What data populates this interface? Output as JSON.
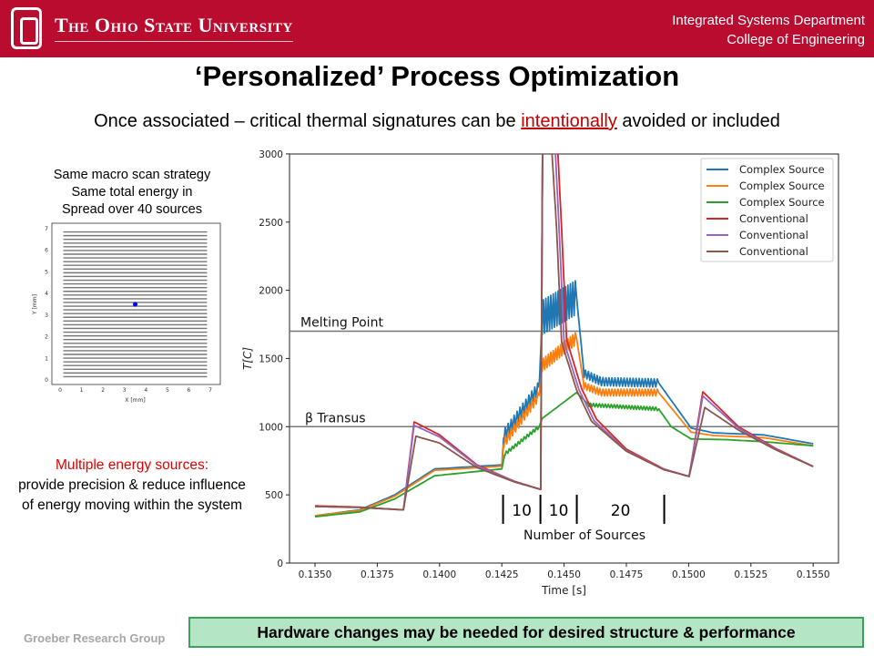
{
  "header": {
    "university": "The Ohio State University",
    "department": "Integrated Systems Department",
    "college": "College of Engineering"
  },
  "title": "‘Personalized’ Process Optimization",
  "subtitle": {
    "before": "Once associated – critical thermal signatures can be ",
    "emphasis": "intentionally",
    "after": " avoided or included"
  },
  "left_notes": {
    "line1": "Same macro scan strategy",
    "line2": "Same total energy in",
    "line3": "Spread over 40 sources",
    "red": "Multiple energy sources:",
    "body": "provide precision & reduce influence of energy moving within the system"
  },
  "inset": {
    "xlabel": "X [mm]",
    "ylabel": "Y [mm]",
    "ticks": [
      "0",
      "1",
      "2",
      "3",
      "4",
      "5",
      "6",
      "7"
    ],
    "point": [
      3.5,
      3.5
    ],
    "point_color": "#0000ff",
    "scan_lines": 40
  },
  "footer": {
    "group": "Groeber Research Group",
    "banner": "Hardware changes may be needed for desired structure & performance"
  },
  "chart_data": {
    "type": "line",
    "xlabel": "Time [s]",
    "ylabel": "T[C]",
    "xlim": [
      0.1341,
      0.1556
    ],
    "ylim": [
      0,
      3000
    ],
    "xticks": [
      "0.1350",
      "0.1375",
      "0.1400",
      "0.1425",
      "0.1450",
      "0.1475",
      "0.1500",
      "0.1525",
      "0.1550"
    ],
    "yticks": [
      "0",
      "500",
      "1000",
      "1500",
      "2000",
      "2500",
      "3000"
    ],
    "legend_position": "top-right",
    "reference_lines": [
      {
        "label": "Melting Point",
        "value": 1700
      },
      {
        "label": "β Transus",
        "value": 1000
      }
    ],
    "annotation": {
      "label": "Number of Sources",
      "segments": [
        "10",
        "10",
        "20"
      ],
      "boundaries": [
        0.14255,
        0.14405,
        0.14551,
        0.14902
      ]
    },
    "series": [
      {
        "name": "Complex Source",
        "color": "#1f77b4",
        "points": [
          [
            0.135,
            347
          ],
          [
            0.1368,
            390
          ],
          [
            0.1382,
            500
          ],
          [
            0.1398,
            690
          ],
          [
            0.1425,
            720
          ],
          [
            0.14258,
            935
          ],
          [
            0.144,
            1290
          ],
          [
            0.14412,
            1800
          ],
          [
            0.1455,
            1950
          ],
          [
            0.1458,
            1390
          ],
          [
            0.1465,
            1330
          ],
          [
            0.1488,
            1320
          ],
          [
            0.1501,
            990
          ],
          [
            0.151,
            955
          ],
          [
            0.153,
            940
          ],
          [
            0.155,
            875
          ]
        ],
        "oscillations": [
          [
            0.14258,
            0.144,
            90,
            0.00012
          ],
          [
            0.14412,
            0.1455,
            250,
            0.0001
          ],
          [
            0.1458,
            0.1488,
            60,
            0.00012
          ]
        ]
      },
      {
        "name": "Complex Source",
        "color": "#ff7f0e",
        "points": [
          [
            0.135,
            347
          ],
          [
            0.1368,
            385
          ],
          [
            0.1382,
            490
          ],
          [
            0.1398,
            680
          ],
          [
            0.1425,
            710
          ],
          [
            0.14258,
            880
          ],
          [
            0.144,
            1230
          ],
          [
            0.14412,
            1450
          ],
          [
            0.1455,
            1650
          ],
          [
            0.1458,
            1300
          ],
          [
            0.1465,
            1250
          ],
          [
            0.1488,
            1250
          ],
          [
            0.1501,
            960
          ],
          [
            0.151,
            935
          ],
          [
            0.153,
            920
          ],
          [
            0.155,
            860
          ]
        ],
        "oscillations": [
          [
            0.14258,
            0.144,
            70,
            0.00012
          ],
          [
            0.14412,
            0.1455,
            90,
            0.0001
          ],
          [
            0.1458,
            0.1488,
            50,
            0.00012
          ]
        ]
      },
      {
        "name": "Complex Source",
        "color": "#2ca02c",
        "points": [
          [
            0.135,
            340
          ],
          [
            0.1368,
            375
          ],
          [
            0.1382,
            470
          ],
          [
            0.1398,
            640
          ],
          [
            0.1425,
            690
          ],
          [
            0.14262,
            800
          ],
          [
            0.144,
            1000
          ],
          [
            0.14412,
            1060
          ],
          [
            0.1455,
            1250
          ],
          [
            0.146,
            1160
          ],
          [
            0.1488,
            1130
          ],
          [
            0.1493,
            1000
          ],
          [
            0.1501,
            910
          ],
          [
            0.1515,
            905
          ],
          [
            0.153,
            890
          ],
          [
            0.155,
            860
          ]
        ],
        "oscillations": [
          [
            0.14262,
            0.144,
            25,
            0.00012
          ],
          [
            0.146,
            0.1488,
            25,
            0.00012
          ]
        ]
      },
      {
        "name": "Conventional",
        "color": "#d62728",
        "points": [
          [
            0.135,
            420
          ],
          [
            0.1368,
            410
          ],
          [
            0.13855,
            390
          ],
          [
            0.13898,
            1035
          ],
          [
            0.14,
            940
          ],
          [
            0.1415,
            720
          ],
          [
            0.143,
            600
          ],
          [
            0.14406,
            540
          ],
          [
            0.14414,
            3200
          ],
          [
            0.1447,
            3200
          ],
          [
            0.1449,
            2450
          ],
          [
            0.1451,
            1640
          ],
          [
            0.1457,
            1280
          ],
          [
            0.1463,
            1055
          ],
          [
            0.1475,
            835
          ],
          [
            0.149,
            690
          ],
          [
            0.15002,
            635
          ],
          [
            0.15057,
            1256
          ],
          [
            0.152,
            1000
          ],
          [
            0.1535,
            840
          ],
          [
            0.155,
            708
          ]
        ]
      },
      {
        "name": "Conventional",
        "color": "#9467bd",
        "points": [
          [
            0.135,
            415
          ],
          [
            0.1368,
            408
          ],
          [
            0.13855,
            390
          ],
          [
            0.13898,
            1010
          ],
          [
            0.14,
            925
          ],
          [
            0.1415,
            715
          ],
          [
            0.143,
            598
          ],
          [
            0.14406,
            540
          ],
          [
            0.14414,
            3200
          ],
          [
            0.1446,
            3200
          ],
          [
            0.1448,
            2450
          ],
          [
            0.145,
            1620
          ],
          [
            0.1456,
            1270
          ],
          [
            0.1462,
            1045
          ],
          [
            0.1475,
            825
          ],
          [
            0.149,
            688
          ],
          [
            0.15002,
            635
          ],
          [
            0.15057,
            1225
          ],
          [
            0.152,
            990
          ],
          [
            0.1535,
            835
          ],
          [
            0.155,
            708
          ]
        ]
      },
      {
        "name": "Conventional",
        "color": "#8c564b",
        "points": [
          [
            0.135,
            415
          ],
          [
            0.1368,
            408
          ],
          [
            0.13855,
            390
          ],
          [
            0.13905,
            930
          ],
          [
            0.14,
            880
          ],
          [
            0.1415,
            700
          ],
          [
            0.143,
            595
          ],
          [
            0.14406,
            540
          ],
          [
            0.14414,
            3200
          ],
          [
            0.14445,
            3200
          ],
          [
            0.1447,
            2450
          ],
          [
            0.1449,
            1620
          ],
          [
            0.1455,
            1270
          ],
          [
            0.1461,
            1040
          ],
          [
            0.1475,
            820
          ],
          [
            0.149,
            685
          ],
          [
            0.15002,
            635
          ],
          [
            0.15065,
            1140
          ],
          [
            0.152,
            975
          ],
          [
            0.1535,
            830
          ],
          [
            0.155,
            708
          ]
        ]
      }
    ]
  }
}
